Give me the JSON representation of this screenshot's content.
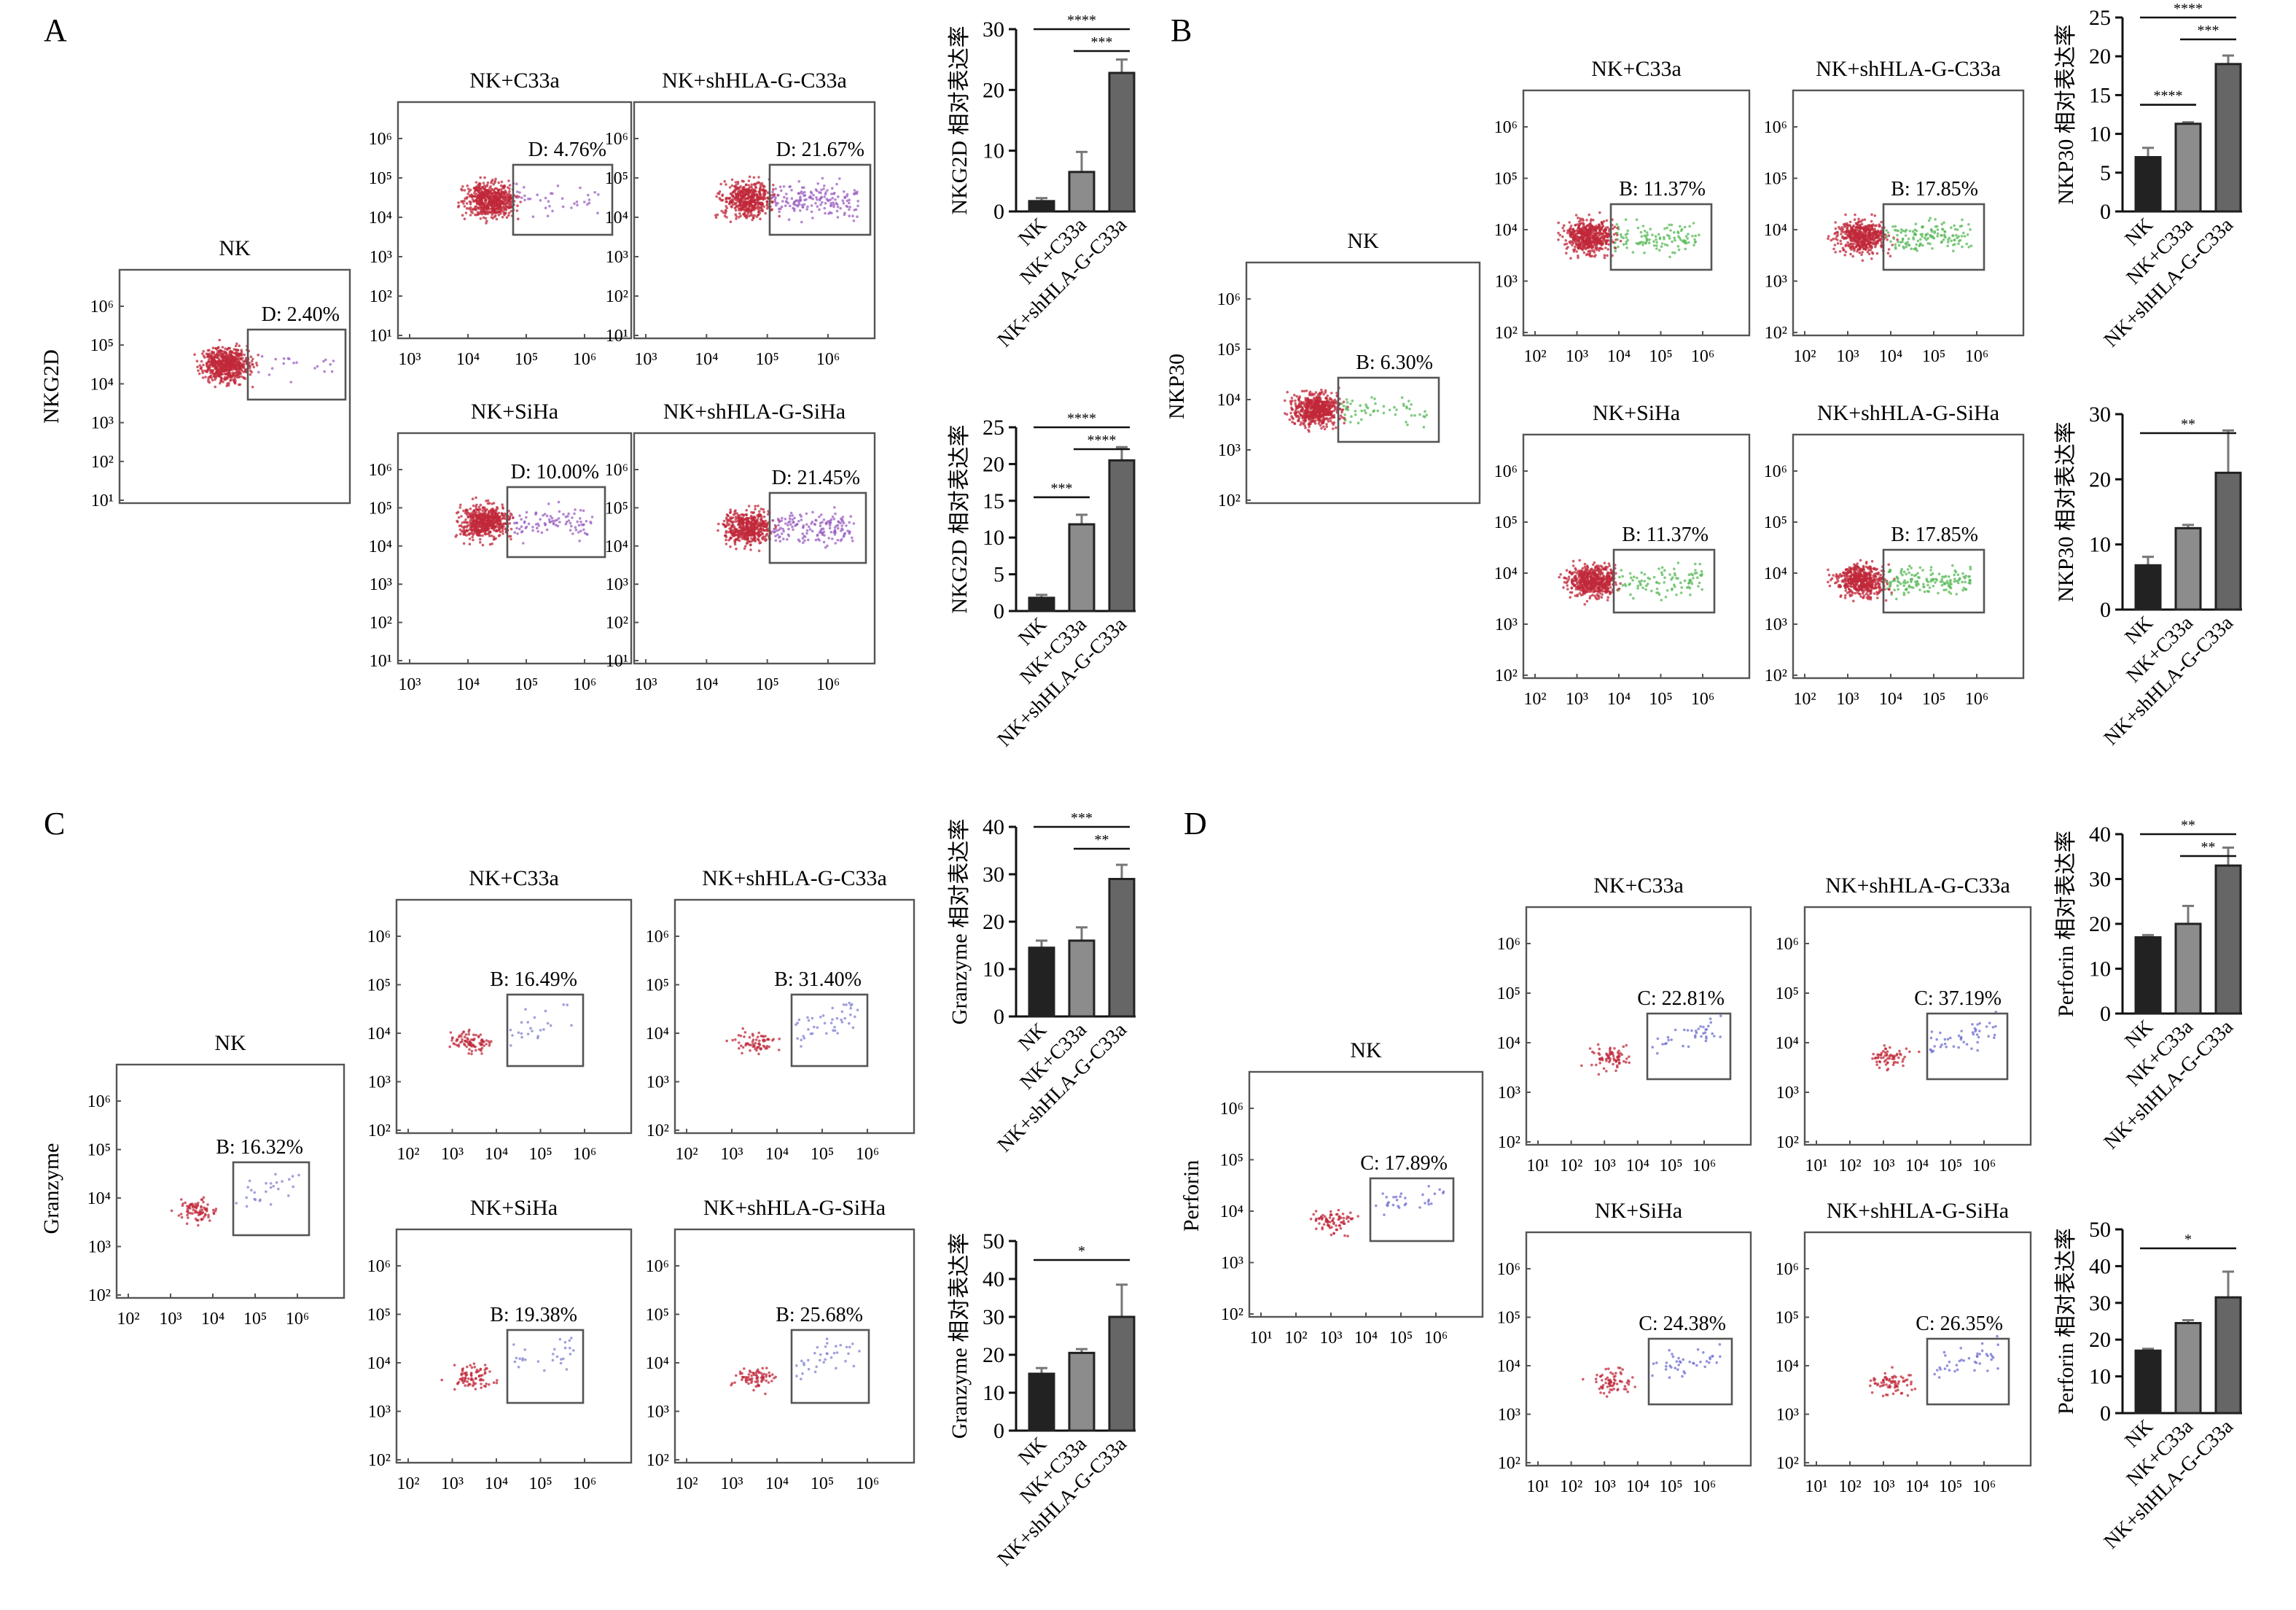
{
  "panels": [
    {
      "letter": "A",
      "marker_ylabel": "NKG2D",
      "flow_plots": [
        {
          "title": "NK",
          "gate_label": "D: 2.40%",
          "y_ticks": [
            "10⁶",
            "10⁵",
            "10⁴",
            "10³",
            "10²",
            "10¹"
          ],
          "x_ticks": []
        },
        {
          "title": "NK+C33a",
          "gate_label": "D: 4.76%",
          "y_ticks": [
            "10⁶",
            "10⁵",
            "10⁴",
            "10³",
            "10²",
            "10¹"
          ],
          "x_ticks": [
            "10³",
            "10⁴",
            "10⁵",
            "10⁶"
          ]
        },
        {
          "title": "NK+shHLA-G-C33a",
          "gate_label": "D: 21.67%",
          "y_ticks": [
            "10⁶",
            "10⁵",
            "10⁴",
            "10³",
            "10²",
            "10¹"
          ],
          "x_ticks": [
            "10³",
            "10⁴",
            "10⁵",
            "10⁶"
          ]
        },
        {
          "title": "NK+SiHa",
          "gate_label": "D: 10.00%",
          "y_ticks": [
            "10⁶",
            "10⁵",
            "10⁴",
            "10³",
            "10²",
            "10¹"
          ],
          "x_ticks": [
            "10³",
            "10⁴",
            "10⁵",
            "10⁶"
          ]
        },
        {
          "title": "NK+shHLA-G-SiHa",
          "gate_label": "D: 21.45%",
          "y_ticks": [
            "10⁶",
            "10⁵",
            "10⁴",
            "10³",
            "10²",
            "10¹"
          ],
          "x_ticks": [
            "10³",
            "10⁴",
            "10⁵",
            "10⁶"
          ]
        }
      ],
      "gate_color": "#9b5fc0"
    },
    {
      "letter": "B",
      "marker_ylabel": "NKP30",
      "flow_plots": [
        {
          "title": "NK",
          "gate_label": "B: 6.30%",
          "y_ticks": [
            "10⁶",
            "10⁵",
            "10⁴",
            "10³",
            "10²"
          ],
          "x_ticks": []
        },
        {
          "title": "NK+C33a",
          "gate_label": "B: 11.37%",
          "y_ticks": [
            "10⁶",
            "10⁵",
            "10⁴",
            "10³",
            "10²"
          ],
          "x_ticks": [
            "10²",
            "10³",
            "10⁴",
            "10⁵",
            "10⁶"
          ]
        },
        {
          "title": "NK+shHLA-G-C33a",
          "gate_label": "B: 17.85%",
          "y_ticks": [
            "10⁶",
            "10⁵",
            "10⁴",
            "10³",
            "10²"
          ],
          "x_ticks": [
            "10²",
            "10³",
            "10⁴",
            "10⁵",
            "10⁶"
          ]
        },
        {
          "title": "NK+SiHa",
          "gate_label": "B: 11.37%",
          "y_ticks": [
            "10⁶",
            "10⁵",
            "10⁴",
            "10³",
            "10²"
          ],
          "x_ticks": [
            "10²",
            "10³",
            "10⁴",
            "10⁵",
            "10⁶"
          ]
        },
        {
          "title": "NK+shHLA-G-SiHa",
          "gate_label": "B: 17.85%",
          "y_ticks": [
            "10⁶",
            "10⁵",
            "10⁴",
            "10³",
            "10²"
          ],
          "x_ticks": [
            "10²",
            "10³",
            "10⁴",
            "10⁵",
            "10⁶"
          ]
        }
      ],
      "gate_color": "#55b855"
    },
    {
      "letter": "C",
      "marker_ylabel": "Granzyme",
      "flow_plots": [
        {
          "title": "NK",
          "gate_label": "B: 16.32%",
          "y_ticks": [
            "10⁶",
            "10⁵",
            "10⁴",
            "10³",
            "10²"
          ],
          "x_ticks": [
            "10²",
            "10³",
            "10⁴",
            "10⁵",
            "10⁶"
          ]
        },
        {
          "title": "NK+C33a",
          "gate_label": "B: 16.49%",
          "y_ticks": [
            "10⁶",
            "10⁵",
            "10⁴",
            "10³",
            "10²"
          ],
          "x_ticks": [
            "10²",
            "10³",
            "10⁴",
            "10⁵",
            "10⁶"
          ]
        },
        {
          "title": "NK+shHLA-G-C33a",
          "gate_label": "B: 31.40%",
          "y_ticks": [
            "10⁶",
            "10⁵",
            "10⁴",
            "10³",
            "10²"
          ],
          "x_ticks": [
            "10²",
            "10³",
            "10⁴",
            "10⁵",
            "10⁶"
          ]
        },
        {
          "title": "NK+SiHa",
          "gate_label": "B: 19.38%",
          "y_ticks": [
            "10⁶",
            "10⁵",
            "10⁴",
            "10³",
            "10²"
          ],
          "x_ticks": [
            "10²",
            "10³",
            "10⁴",
            "10⁵",
            "10⁶"
          ]
        },
        {
          "title": "NK+shHLA-G-SiHa",
          "gate_label": "B: 25.68%",
          "y_ticks": [
            "10⁶",
            "10⁵",
            "10⁴",
            "10³",
            "10²"
          ],
          "x_ticks": [
            "10²",
            "10³",
            "10⁴",
            "10⁵",
            "10⁶"
          ]
        }
      ],
      "gate_color": "#8080d0"
    },
    {
      "letter": "D",
      "marker_ylabel": "Perforin",
      "flow_plots": [
        {
          "title": "NK",
          "gate_label": "C: 17.89%",
          "y_ticks": [
            "10⁶",
            "10⁵",
            "10⁴",
            "10³",
            "10²"
          ],
          "x_ticks": [
            "10¹",
            "10²",
            "10³",
            "10⁴",
            "10⁵",
            "10⁶"
          ]
        },
        {
          "title": "NK+C33a",
          "gate_label": "C: 22.81%",
          "y_ticks": [
            "10⁶",
            "10⁵",
            "10⁴",
            "10³",
            "10²"
          ],
          "x_ticks": [
            "10¹",
            "10²",
            "10³",
            "10⁴",
            "10⁵",
            "10⁶"
          ]
        },
        {
          "title": "NK+shHLA-G-C33a",
          "gate_label": "C: 37.19%",
          "y_ticks": [
            "10⁶",
            "10⁵",
            "10⁴",
            "10³",
            "10²"
          ],
          "x_ticks": [
            "10¹",
            "10²",
            "10³",
            "10⁴",
            "10⁵",
            "10⁶"
          ]
        },
        {
          "title": "NK+SiHa",
          "gate_label": "C: 24.38%",
          "y_ticks": [
            "10⁶",
            "10⁵",
            "10⁴",
            "10³",
            "10²"
          ],
          "x_ticks": [
            "10¹",
            "10²",
            "10³",
            "10⁴",
            "10⁵",
            "10⁶"
          ]
        },
        {
          "title": "NK+shHLA-G-SiHa",
          "gate_label": "C: 26.35%",
          "y_ticks": [
            "10⁶",
            "10⁵",
            "10⁴",
            "10³",
            "10²"
          ],
          "x_ticks": [
            "10¹",
            "10²",
            "10³",
            "10⁴",
            "10⁵",
            "10⁶"
          ]
        }
      ],
      "gate_color": "#6d6dd0"
    }
  ],
  "colors": {
    "population": "#c0283a",
    "bar_fills": [
      "#222222",
      "#8c8c8c",
      "#666666"
    ]
  },
  "chart_data": [
    {
      "type": "bar",
      "panel": "A",
      "ylabel": "NKG2D 相对表达率",
      "categories": [
        "NK",
        "NK+C33a",
        "NK+shHLA-G-C33a"
      ],
      "values": [
        1.7,
        6.5,
        22.8
      ],
      "errors": [
        0.5,
        3.3,
        2.2
      ],
      "ylim": [
        0,
        30
      ],
      "yticks": [
        0,
        10,
        20,
        30
      ],
      "significance": [
        {
          "from": 0,
          "to": 2,
          "label": "****"
        },
        {
          "from": 1,
          "to": 2,
          "label": "***"
        }
      ]
    },
    {
      "type": "bar",
      "panel": "A",
      "ylabel": "NKG2D 相对表达率",
      "categories": [
        "NK",
        "NK+C33a",
        "NK+shHLA-G-C33a"
      ],
      "values": [
        1.8,
        11.8,
        20.5
      ],
      "errors": [
        0.4,
        1.3,
        1.8
      ],
      "ylim": [
        0,
        25
      ],
      "yticks": [
        0,
        5,
        10,
        15,
        20,
        25
      ],
      "significance": [
        {
          "from": 0,
          "to": 2,
          "label": "****"
        },
        {
          "from": 1,
          "to": 2,
          "label": "****"
        },
        {
          "from": 0,
          "to": 1,
          "label": "***"
        }
      ]
    },
    {
      "type": "bar",
      "panel": "B",
      "ylabel": "NKP30 相对表达率",
      "categories": [
        "NK",
        "NK+C33a",
        "NK+shHLA-G-C33a"
      ],
      "values": [
        7.0,
        11.3,
        19.0
      ],
      "errors": [
        1.2,
        0.2,
        1.1
      ],
      "ylim": [
        0,
        25
      ],
      "yticks": [
        0,
        5,
        10,
        15,
        20,
        25
      ],
      "significance": [
        {
          "from": 0,
          "to": 2,
          "label": "****"
        },
        {
          "from": 1,
          "to": 2,
          "label": "***"
        },
        {
          "from": 0,
          "to": 1,
          "label": "****"
        }
      ]
    },
    {
      "type": "bar",
      "panel": "B",
      "ylabel": "NKP30 相对表达率",
      "categories": [
        "NK",
        "NK+C33a",
        "NK+shHLA-G-C33a"
      ],
      "values": [
        6.8,
        12.5,
        21.0
      ],
      "errors": [
        1.3,
        0.5,
        6.5
      ],
      "ylim": [
        0,
        30
      ],
      "yticks": [
        0,
        10,
        20,
        30
      ],
      "significance": [
        {
          "from": 0,
          "to": 2,
          "label": "**"
        }
      ]
    },
    {
      "type": "bar",
      "panel": "C",
      "ylabel": "Granzyme 相对表达率",
      "categories": [
        "NK",
        "NK+C33a",
        "NK+shHLA-G-C33a"
      ],
      "values": [
        14.5,
        16.0,
        29.0
      ],
      "errors": [
        1.5,
        2.8,
        3.0
      ],
      "ylim": [
        0,
        40
      ],
      "yticks": [
        0,
        10,
        20,
        30,
        40
      ],
      "significance": [
        {
          "from": 0,
          "to": 2,
          "label": "***"
        },
        {
          "from": 1,
          "to": 2,
          "label": "**"
        }
      ]
    },
    {
      "type": "bar",
      "panel": "C",
      "ylabel": "Granzyme 相对表达率",
      "categories": [
        "NK",
        "NK+C33a",
        "NK+shHLA-G-C33a"
      ],
      "values": [
        15.0,
        20.5,
        30.0
      ],
      "errors": [
        1.5,
        1.0,
        8.5
      ],
      "ylim": [
        0,
        50
      ],
      "yticks": [
        0,
        10,
        20,
        30,
        40,
        50
      ],
      "significance": [
        {
          "from": 0,
          "to": 2,
          "label": "*"
        }
      ]
    },
    {
      "type": "bar",
      "panel": "D",
      "ylabel": "Perforin 相对表达率",
      "categories": [
        "NK",
        "NK+C33a",
        "NK+shHLA-G-C33a"
      ],
      "values": [
        17.0,
        20.0,
        33.0
      ],
      "errors": [
        0.5,
        4.0,
        4.0
      ],
      "ylim": [
        0,
        40
      ],
      "yticks": [
        0,
        10,
        20,
        30,
        40
      ],
      "significance": [
        {
          "from": 0,
          "to": 2,
          "label": "**"
        },
        {
          "from": 1,
          "to": 2,
          "label": "**"
        }
      ]
    },
    {
      "type": "bar",
      "panel": "D",
      "ylabel": "Perforin 相对表达率",
      "categories": [
        "NK",
        "NK+C33a",
        "NK+shHLA-G-C33a"
      ],
      "values": [
        17.0,
        24.5,
        31.5
      ],
      "errors": [
        0.5,
        0.8,
        7.0
      ],
      "ylim": [
        0,
        50
      ],
      "yticks": [
        0,
        10,
        20,
        30,
        40,
        50
      ],
      "significance": [
        {
          "from": 0,
          "to": 2,
          "label": "*"
        }
      ]
    }
  ]
}
